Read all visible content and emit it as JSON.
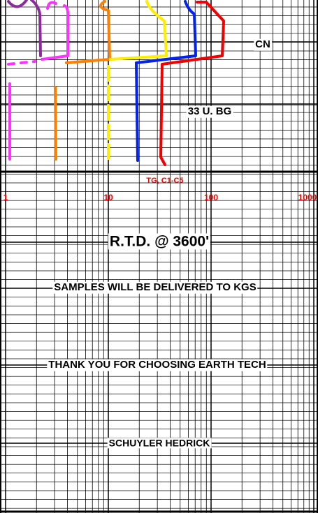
{
  "labels": {
    "cn": "CN",
    "background_gas": "33 U. BG",
    "gas_curve": "TG, C1-C5"
  },
  "scale": [
    "1",
    "10",
    "100",
    "1000"
  ],
  "notes": [
    "R.T.D. @ 3600'",
    "SAMPLES WILL BE DELIVERED TO KGS",
    "THANK YOU FOR CHOOSING EARTH TECH",
    "SCHUYLER HEDRICK"
  ]
}
